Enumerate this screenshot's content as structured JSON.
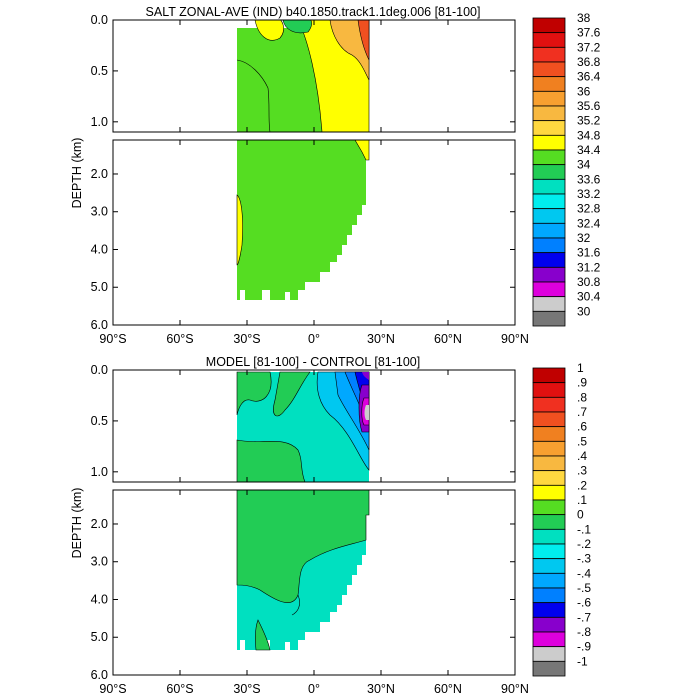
{
  "chart_data": [
    {
      "type": "heatmap",
      "title": "SALT ZONAL-AVE (IND) b40.1850.track1.1deg.006 [81-100]",
      "ylabel": "DEPTH (km)",
      "x_ticks": [
        "90°S",
        "60°S",
        "30°S",
        "0°",
        "30°N",
        "60°N",
        "90°N"
      ],
      "y_ticks_upper": [
        "0.0",
        "0.5",
        "1.0"
      ],
      "y_ticks_lower": [
        "2.0",
        "3.0",
        "4.0",
        "5.0",
        "6.0"
      ],
      "xlim": [
        -90,
        90
      ],
      "ylim_km": [
        0,
        6
      ],
      "colorbar": {
        "labels": [
          "38",
          "37.6",
          "37.2",
          "36.8",
          "36.4",
          "36",
          "35.6",
          "35.2",
          "34.8",
          "34.4",
          "34",
          "33.6",
          "33.2",
          "32.8",
          "32.4",
          "32",
          "31.6",
          "31.2",
          "30.8",
          "30.4",
          "30"
        ],
        "colors": [
          "#c00000",
          "#e01010",
          "#f03020",
          "#f05020",
          "#f08020",
          "#f8a030",
          "#f8b840",
          "#ffd840",
          "#ffff00",
          "#55dd22",
          "#22cc55",
          "#00e0c0",
          "#00eeee",
          "#00c8f0",
          "#00a8ff",
          "#0080ff",
          "#0000ee",
          "#8800cc",
          "#dd00dd",
          "#cccccc",
          "#777777"
        ]
      }
    },
    {
      "type": "heatmap",
      "title": "MODEL [81-100] - CONTROL [81-100]",
      "ylabel": "DEPTH (km)",
      "x_ticks": [
        "90°S",
        "60°S",
        "30°S",
        "0°",
        "30°N",
        "60°N",
        "90°N"
      ],
      "y_ticks_upper": [
        "0.0",
        "0.5",
        "1.0"
      ],
      "y_ticks_lower": [
        "2.0",
        "3.0",
        "4.0",
        "5.0",
        "6.0"
      ],
      "xlim": [
        -90,
        90
      ],
      "ylim_km": [
        0,
        6
      ],
      "colorbar": {
        "labels": [
          "1",
          ".9",
          ".8",
          ".7",
          ".6",
          ".5",
          ".4",
          ".3",
          ".2",
          ".1",
          "0",
          "-.1",
          "-.2",
          "-.3",
          "-.4",
          "-.5",
          "-.6",
          "-.7",
          "-.8",
          "-.9",
          "-1"
        ],
        "colors": [
          "#c00000",
          "#e01010",
          "#f03020",
          "#f05020",
          "#f08020",
          "#f8a030",
          "#f8b840",
          "#ffd840",
          "#ffff00",
          "#55dd22",
          "#22cc55",
          "#00e0c0",
          "#00eeee",
          "#00c8f0",
          "#00a8ff",
          "#0080ff",
          "#0000ee",
          "#8800cc",
          "#dd00dd",
          "#cccccc",
          "#777777"
        ]
      }
    }
  ]
}
